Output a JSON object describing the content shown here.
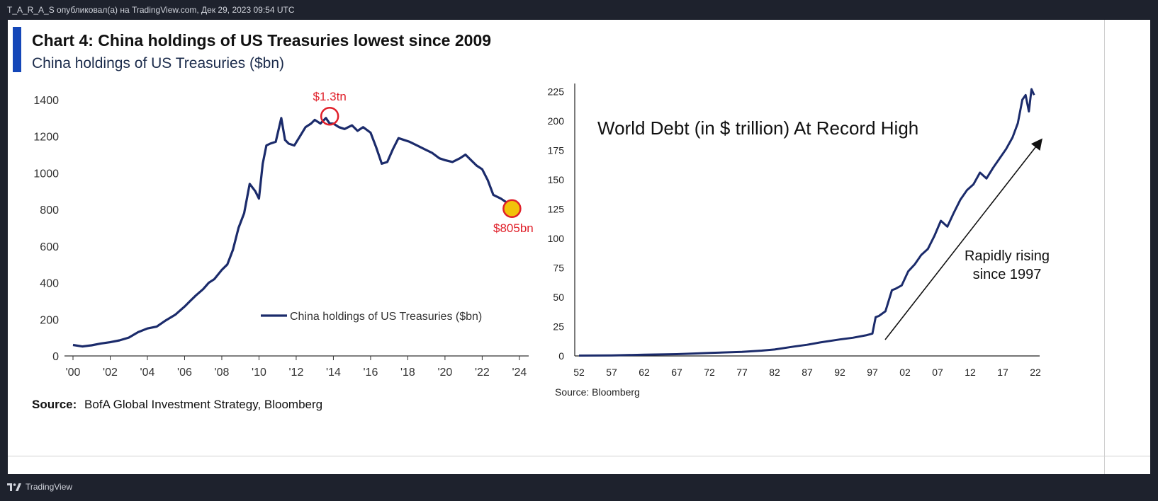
{
  "header": {
    "text": "T_A_R_A_S опубликовал(а) на TradingView.com, Дек 29, 2023 09:54 UTC"
  },
  "footer": {
    "brand": "TradingView",
    "icon": "tradingview-logo-icon"
  },
  "colors": {
    "line": "#1b2b6b",
    "accent": "#1447b8",
    "highlight_red": "#e0202a",
    "highlight_yellow": "#f2c20a"
  },
  "chart_data": [
    {
      "type": "line",
      "title": "Chart 4: China holdings of US Treasuries lowest since 2009",
      "subtitle": "China holdings of US Treasuries ($bn)",
      "x_tick_labels": [
        "'00",
        "'02",
        "'04",
        "'06",
        "'08",
        "'10",
        "'12",
        "'14",
        "'16",
        "'18",
        "'20",
        "'22",
        "'24"
      ],
      "y_tick_labels": [
        "0",
        "200",
        "400",
        "600",
        "800",
        "1000",
        "1200",
        "1400"
      ],
      "xlim": [
        2000,
        2024.5
      ],
      "ylim": [
        0,
        1450
      ],
      "legend": "China holdings of US Treasuries ($bn)",
      "legend_position": "bottom-right",
      "series": [
        {
          "name": "China holdings of US Treasuries ($bn)",
          "x": [
            2000.0,
            2000.5,
            2001.0,
            2001.5,
            2002.0,
            2002.5,
            2003.0,
            2003.5,
            2004.0,
            2004.5,
            2005.0,
            2005.5,
            2006.0,
            2006.3,
            2006.6,
            2007.0,
            2007.3,
            2007.6,
            2008.0,
            2008.3,
            2008.6,
            2008.9,
            2009.2,
            2009.5,
            2009.8,
            2010.0,
            2010.2,
            2010.4,
            2010.6,
            2010.9,
            2011.2,
            2011.4,
            2011.6,
            2011.9,
            2012.2,
            2012.5,
            2012.8,
            2013.0,
            2013.3,
            2013.6,
            2013.8,
            2014.0,
            2014.3,
            2014.6,
            2015.0,
            2015.3,
            2015.6,
            2016.0,
            2016.3,
            2016.6,
            2016.9,
            2017.2,
            2017.5,
            2017.8,
            2018.1,
            2018.5,
            2018.9,
            2019.3,
            2019.7,
            2020.0,
            2020.4,
            2020.8,
            2021.1,
            2021.4,
            2021.7,
            2022.0,
            2022.3,
            2022.6,
            2023.0,
            2023.3,
            2023.6
          ],
          "values": [
            60,
            52,
            58,
            68,
            75,
            85,
            100,
            130,
            150,
            160,
            195,
            225,
            270,
            300,
            330,
            365,
            400,
            420,
            470,
            500,
            580,
            700,
            780,
            940,
            900,
            860,
            1050,
            1150,
            1160,
            1170,
            1300,
            1180,
            1160,
            1150,
            1200,
            1250,
            1270,
            1290,
            1270,
            1300,
            1270,
            1270,
            1250,
            1240,
            1260,
            1230,
            1250,
            1220,
            1140,
            1050,
            1060,
            1130,
            1190,
            1180,
            1170,
            1150,
            1130,
            1110,
            1080,
            1070,
            1060,
            1080,
            1100,
            1070,
            1040,
            1020,
            960,
            880,
            860,
            840,
            805
          ]
        }
      ],
      "annotations": [
        {
          "text": "$1.3tn",
          "x": 2013.8,
          "y": 1310,
          "marker": "red-circle"
        },
        {
          "text": "$805bn",
          "x": 2023.6,
          "y": 805,
          "marker": "yellow-circle"
        }
      ],
      "source": "BofA Global Investment Strategy, Bloomberg",
      "source_label": "Source:"
    },
    {
      "type": "line",
      "title": "World Debt (in $ trillion) At Record High",
      "x_tick_labels": [
        "52",
        "57",
        "62",
        "67",
        "72",
        "77",
        "82",
        "87",
        "92",
        "97",
        "02",
        "07",
        "12",
        "17",
        "22"
      ],
      "y_tick_labels": [
        "0",
        "25",
        "50",
        "75",
        "100",
        "125",
        "150",
        "175",
        "200",
        "225"
      ],
      "xlim": [
        1952,
        2022
      ],
      "ylim": [
        0,
        230
      ],
      "annotation": "Rapidly rising since 1997",
      "annotation_lines": [
        "Rapidly rising",
        "since 1997"
      ],
      "series": [
        {
          "name": "",
          "x": [
            1952,
            1957,
            1962,
            1967,
            1972,
            1977,
            1980,
            1982,
            1985,
            1987,
            1989,
            1992,
            1994,
            1996,
            1997,
            1997.5,
            1998,
            1999,
            2000,
            2000.5,
            2001.5,
            2002.5,
            2003.5,
            2004.5,
            2005.5,
            2006.5,
            2007.5,
            2008.5,
            2009.5,
            2010.5,
            2011.5,
            2012.5,
            2013.5,
            2014.5,
            2015.5,
            2016.5,
            2017.5,
            2018.5,
            2019.3,
            2020.0,
            2020.5,
            2021.0,
            2021.4,
            2021.8
          ],
          "values": [
            0.3,
            0.5,
            1,
            1.5,
            2.5,
            3.5,
            4.5,
            5.5,
            8,
            9.5,
            11.5,
            14,
            15.5,
            17.5,
            19,
            33,
            34,
            38,
            56,
            57,
            60,
            72,
            78,
            86,
            91,
            102,
            115,
            110,
            122,
            133,
            141,
            146,
            156,
            151,
            160,
            168,
            176,
            186,
            198,
            218,
            222,
            208,
            227,
            222
          ]
        }
      ],
      "source": "Source: Bloomberg"
    }
  ]
}
